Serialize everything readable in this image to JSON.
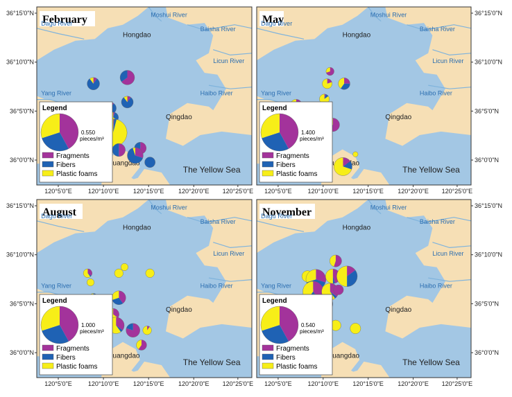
{
  "colors": {
    "land": "#f6dfb5",
    "water": "#a3c7e4",
    "river_line": "#7fb3dc",
    "fragments": "#a3339b",
    "fibers": "#1f62b4",
    "plastic_foams": "#f7ee18",
    "frame": "#333333"
  },
  "axes": {
    "lat_ticks": [
      "36°15'0\"N",
      "36°10'0\"N",
      "36°5'0\"N",
      "36°0'0\"N"
    ],
    "lon_ticks": [
      "120°5'0\"E",
      "120°10'0\"E",
      "120°15'0\"E",
      "120°20'0\"E",
      "120°25'0\"E"
    ]
  },
  "labels": {
    "places": [
      "Hongdao",
      "Qingdao",
      "Huangdao"
    ],
    "rivers": [
      "Moshui River",
      "Baisha River",
      "Dagu River",
      "Licun River",
      "Yang River",
      "Haibo River"
    ],
    "sea": "The Yellow Sea"
  },
  "legend": {
    "title": "Legend",
    "items": [
      {
        "name": "Fragments",
        "color": "#a3339b"
      },
      {
        "name": "Fibers",
        "color": "#1f62b4"
      },
      {
        "name": "Plastic foams",
        "color": "#f7ee18"
      }
    ],
    "unit": "pieces/m³"
  },
  "panels": [
    {
      "month": "February",
      "scale_value": "0.550",
      "sites": [
        {
          "lon": 120.15,
          "lat": 36.1,
          "value": 0.1,
          "frag": 0.1,
          "fib": 0.8,
          "foam": 0.1
        },
        {
          "lon": 120.17,
          "lat": 36.14,
          "value": 0.11,
          "frag": 0.1,
          "fib": 0.8,
          "foam": 0.1
        },
        {
          "lon": 120.2,
          "lat": 36.1,
          "value": 0.1,
          "frag": 0.1,
          "fib": 0.8,
          "foam": 0.1
        },
        {
          "lon": 120.23,
          "lat": 36.15,
          "value": 0.15,
          "frag": 0.65,
          "fib": 0.35,
          "foam": 0.0
        },
        {
          "lon": 120.23,
          "lat": 36.11,
          "value": 0.1,
          "frag": 0.1,
          "fib": 0.8,
          "foam": 0.1
        },
        {
          "lon": 120.17,
          "lat": 36.095,
          "value": 0.13,
          "frag": 0.7,
          "fib": 0.3,
          "foam": 0.0
        },
        {
          "lon": 120.165,
          "lat": 36.075,
          "value": 0.28,
          "frag": 0.75,
          "fib": 0.25,
          "foam": 0.0
        },
        {
          "lon": 120.205,
          "lat": 36.085,
          "value": 0.08,
          "frag": 0.05,
          "fib": 0.3,
          "foam": 0.65
        },
        {
          "lon": 120.205,
          "lat": 36.06,
          "value": 0.55,
          "frag": 0.01,
          "fib": 0.03,
          "foam": 0.96
        },
        {
          "lon": 120.19,
          "lat": 36.035,
          "value": 0.07,
          "frag": 0.0,
          "fib": 1.0,
          "foam": 0.0
        },
        {
          "lon": 120.215,
          "lat": 36.032,
          "value": 0.12,
          "frag": 0.5,
          "fib": 0.5,
          "foam": 0.0
        },
        {
          "lon": 120.253,
          "lat": 36.035,
          "value": 0.1,
          "frag": 0.6,
          "fib": 0.4,
          "foam": 0.0
        },
        {
          "lon": 120.244,
          "lat": 36.023,
          "value": 0.18,
          "frag": 0.3,
          "fib": 0.65,
          "foam": 0.05
        },
        {
          "lon": 120.27,
          "lat": 36.012,
          "value": 0.08,
          "frag": 0.0,
          "fib": 1.0,
          "foam": 0.0
        }
      ]
    },
    {
      "month": "May",
      "scale_value": "1.400",
      "sites": [
        {
          "lon": 120.2,
          "lat": 36.16,
          "value": 0.12,
          "frag": 0.7,
          "fib": 0.0,
          "foam": 0.3
        },
        {
          "lon": 120.195,
          "lat": 36.14,
          "value": 0.18,
          "frag": 0.2,
          "fib": 0.0,
          "foam": 0.8
        },
        {
          "lon": 120.225,
          "lat": 36.14,
          "value": 0.25,
          "frag": 0.25,
          "fib": 0.35,
          "foam": 0.4
        },
        {
          "lon": 120.14,
          "lat": 36.105,
          "value": 0.25,
          "frag": 0.6,
          "fib": 0.05,
          "foam": 0.35
        },
        {
          "lon": 120.19,
          "lat": 36.115,
          "value": 0.18,
          "frag": 0.05,
          "fib": 0.1,
          "foam": 0.85
        },
        {
          "lon": 120.134,
          "lat": 36.08,
          "value": 0.15,
          "frag": 0.15,
          "fib": 0.05,
          "foam": 0.8
        },
        {
          "lon": 120.185,
          "lat": 36.075,
          "value": 0.2,
          "frag": 0.1,
          "fib": 0.2,
          "foam": 0.7
        },
        {
          "lon": 120.205,
          "lat": 36.073,
          "value": 0.33,
          "frag": 0.55,
          "fib": 0.1,
          "foam": 0.35
        },
        {
          "lon": 120.175,
          "lat": 36.06,
          "value": 0.15,
          "frag": 0.2,
          "fib": 0.0,
          "foam": 0.8
        },
        {
          "lon": 120.18,
          "lat": 36.038,
          "value": 0.05,
          "frag": 0.0,
          "fib": 0.0,
          "foam": 1.0
        },
        {
          "lon": 120.223,
          "lat": 36.005,
          "value": 0.6,
          "frag": 0.15,
          "fib": 0.15,
          "foam": 0.7
        },
        {
          "lon": 120.245,
          "lat": 36.025,
          "value": 0.05,
          "frag": 0.0,
          "fib": 0.0,
          "foam": 1.0
        }
      ]
    },
    {
      "month": "August",
      "scale_value": "1.000",
      "sites": [
        {
          "lon": 120.225,
          "lat": 36.155,
          "value": 0.07,
          "frag": 0.0,
          "fib": 0.0,
          "foam": 1.0
        },
        {
          "lon": 120.16,
          "lat": 36.145,
          "value": 0.1,
          "frag": 0.35,
          "fib": 0.05,
          "foam": 0.6
        },
        {
          "lon": 120.215,
          "lat": 36.145,
          "value": 0.1,
          "frag": 0.0,
          "fib": 0.0,
          "foam": 1.0
        },
        {
          "lon": 120.27,
          "lat": 36.145,
          "value": 0.1,
          "frag": 0.0,
          "fib": 0.0,
          "foam": 1.0
        },
        {
          "lon": 120.165,
          "lat": 36.13,
          "value": 0.07,
          "frag": 0.0,
          "fib": 0.0,
          "foam": 1.0
        },
        {
          "lon": 120.17,
          "lat": 36.105,
          "value": 0.1,
          "frag": 0.0,
          "fib": 0.6,
          "foam": 0.4
        },
        {
          "lon": 120.215,
          "lat": 36.105,
          "value": 0.25,
          "frag": 0.4,
          "fib": 0.3,
          "foam": 0.3
        },
        {
          "lon": 120.205,
          "lat": 36.078,
          "value": 0.18,
          "frag": 0.35,
          "fib": 0.0,
          "foam": 0.65
        },
        {
          "lon": 120.21,
          "lat": 36.06,
          "value": 0.35,
          "frag": 0.35,
          "fib": 0.05,
          "foam": 0.6
        },
        {
          "lon": 120.24,
          "lat": 36.052,
          "value": 0.25,
          "frag": 0.8,
          "fib": 0.2,
          "foam": 0.0
        },
        {
          "lon": 120.255,
          "lat": 36.028,
          "value": 0.14,
          "frag": 0.6,
          "fib": 0.0,
          "foam": 0.4
        },
        {
          "lon": 120.265,
          "lat": 36.052,
          "value": 0.1,
          "frag": 0.1,
          "fib": 0.0,
          "foam": 0.9
        }
      ]
    },
    {
      "month": "November",
      "scale_value": "0.540",
      "sites": [
        {
          "lon": 120.21,
          "lat": 36.165,
          "value": 0.1,
          "frag": 0.55,
          "fib": 0.0,
          "foam": 0.45
        },
        {
          "lon": 120.16,
          "lat": 36.14,
          "value": 0.09,
          "frag": 0.0,
          "fib": 0.0,
          "foam": 1.0
        },
        {
          "lon": 120.175,
          "lat": 36.135,
          "value": 0.28,
          "frag": 0.3,
          "fib": 0.4,
          "foam": 0.3
        },
        {
          "lon": 120.205,
          "lat": 36.14,
          "value": 0.15,
          "frag": 0.45,
          "fib": 0.05,
          "foam": 0.5
        },
        {
          "lon": 120.23,
          "lat": 36.14,
          "value": 0.3,
          "frag": 0.15,
          "fib": 0.35,
          "foam": 0.5
        },
        {
          "lon": 120.17,
          "lat": 36.115,
          "value": 0.3,
          "frag": 0.4,
          "fib": 0.2,
          "foam": 0.4
        },
        {
          "lon": 120.2,
          "lat": 36.115,
          "value": 0.2,
          "frag": 0.35,
          "fib": 0.05,
          "foam": 0.6
        },
        {
          "lon": 120.215,
          "lat": 36.118,
          "value": 0.07,
          "frag": 1.0,
          "fib": 0.0,
          "foam": 0.0
        },
        {
          "lon": 120.19,
          "lat": 36.095,
          "value": 0.2,
          "frag": 0.2,
          "fib": 0.35,
          "foam": 0.45
        },
        {
          "lon": 120.185,
          "lat": 36.075,
          "value": 0.1,
          "frag": 0.4,
          "fib": 0.3,
          "foam": 0.3
        },
        {
          "lon": 120.195,
          "lat": 36.06,
          "value": 0.08,
          "frag": 0.2,
          "fib": 0.0,
          "foam": 0.8
        },
        {
          "lon": 120.21,
          "lat": 36.06,
          "value": 0.08,
          "frag": 0.0,
          "fib": 0.0,
          "foam": 1.0
        },
        {
          "lon": 120.245,
          "lat": 36.055,
          "value": 0.08,
          "frag": 0.0,
          "fib": 0.0,
          "foam": 1.0
        }
      ]
    }
  ]
}
